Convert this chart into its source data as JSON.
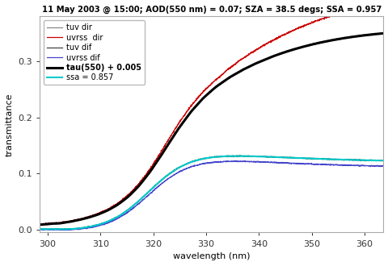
{
  "title": "11 May 2003 @ 15:00; AOD(550 nm) = 0.07; SZA = 38.5 degs; SSA = 0.957",
  "xlabel": "wavelength (nm)",
  "ylabel": "transmittance",
  "xlim": [
    298.5,
    363.5
  ],
  "ylim": [
    -0.005,
    0.38
  ],
  "yticks": [
    0.0,
    0.1,
    0.2,
    0.3
  ],
  "xticks": [
    300,
    310,
    320,
    330,
    340,
    350,
    360
  ],
  "legend_entries": [
    "tuv dir",
    "uvrss  dir",
    "tuv dif",
    "uvrss dif",
    "tau(550) + 0.005",
    "ssa = 0.857"
  ],
  "line_colors": [
    "#888888",
    "#cc0000",
    "#404040",
    "#4444cc",
    "#000000",
    "#00cccc"
  ],
  "line_widths": [
    0.9,
    0.9,
    0.9,
    0.9,
    2.2,
    1.5
  ],
  "background": "#ffffff"
}
